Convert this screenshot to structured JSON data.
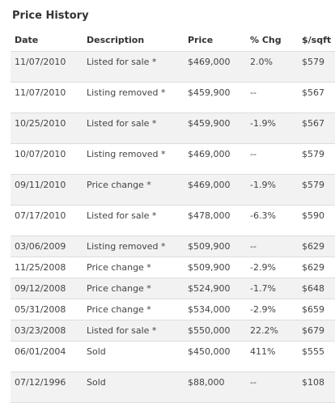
{
  "title": "Price History",
  "columns": {
    "date": "Date",
    "description": "Description",
    "price": "Price",
    "pct_chg": "% Chg",
    "per_sqft": "$/sqft"
  },
  "rows": [
    {
      "date": "11/07/2010",
      "description": "Listed for sale *",
      "price": "$469,000",
      "pct_chg": "2.0%",
      "per_sqft": "$579"
    },
    {
      "date": "11/07/2010",
      "description": "Listing removed *",
      "price": "$459,900",
      "pct_chg": "--",
      "per_sqft": "$567"
    },
    {
      "date": "10/25/2010",
      "description": "Listed for sale *",
      "price": "$459,900",
      "pct_chg": "-1.9%",
      "per_sqft": "$567"
    },
    {
      "date": "10/07/2010",
      "description": "Listing removed *",
      "price": "$469,000",
      "pct_chg": "--",
      "per_sqft": "$579"
    },
    {
      "date": "09/11/2010",
      "description": "Price change *",
      "price": "$469,000",
      "pct_chg": "-1.9%",
      "per_sqft": "$579"
    },
    {
      "date": "07/17/2010",
      "description": "Listed for sale *",
      "price": "$478,000",
      "pct_chg": "-6.3%",
      "per_sqft": "$590"
    },
    {
      "date": "03/06/2009",
      "description": "Listing removed *",
      "price": "$509,900",
      "pct_chg": "--",
      "per_sqft": "$629"
    },
    {
      "date": "11/25/2008",
      "description": "Price change *",
      "price": "$509,900",
      "pct_chg": "-2.9%",
      "per_sqft": "$629"
    },
    {
      "date": "09/12/2008",
      "description": "Price change *",
      "price": "$524,900",
      "pct_chg": "-1.7%",
      "per_sqft": "$648"
    },
    {
      "date": "05/31/2008",
      "description": "Price change *",
      "price": "$534,000",
      "pct_chg": "-2.9%",
      "per_sqft": "$659"
    },
    {
      "date": "03/23/2008",
      "description": "Listed for sale *",
      "price": "$550,000",
      "pct_chg": "22.2%",
      "per_sqft": "$679"
    },
    {
      "date": "06/01/2004",
      "description": "Sold",
      "price": "$450,000",
      "pct_chg": "411%",
      "per_sqft": "$555"
    },
    {
      "date": "07/12/1996",
      "description": "Sold",
      "price": "$88,000",
      "pct_chg": "--",
      "per_sqft": "$108"
    }
  ],
  "colors": {
    "positive": "#2a9a2a",
    "negative": "#cc2222",
    "row_shade": "#f2f2f2"
  }
}
